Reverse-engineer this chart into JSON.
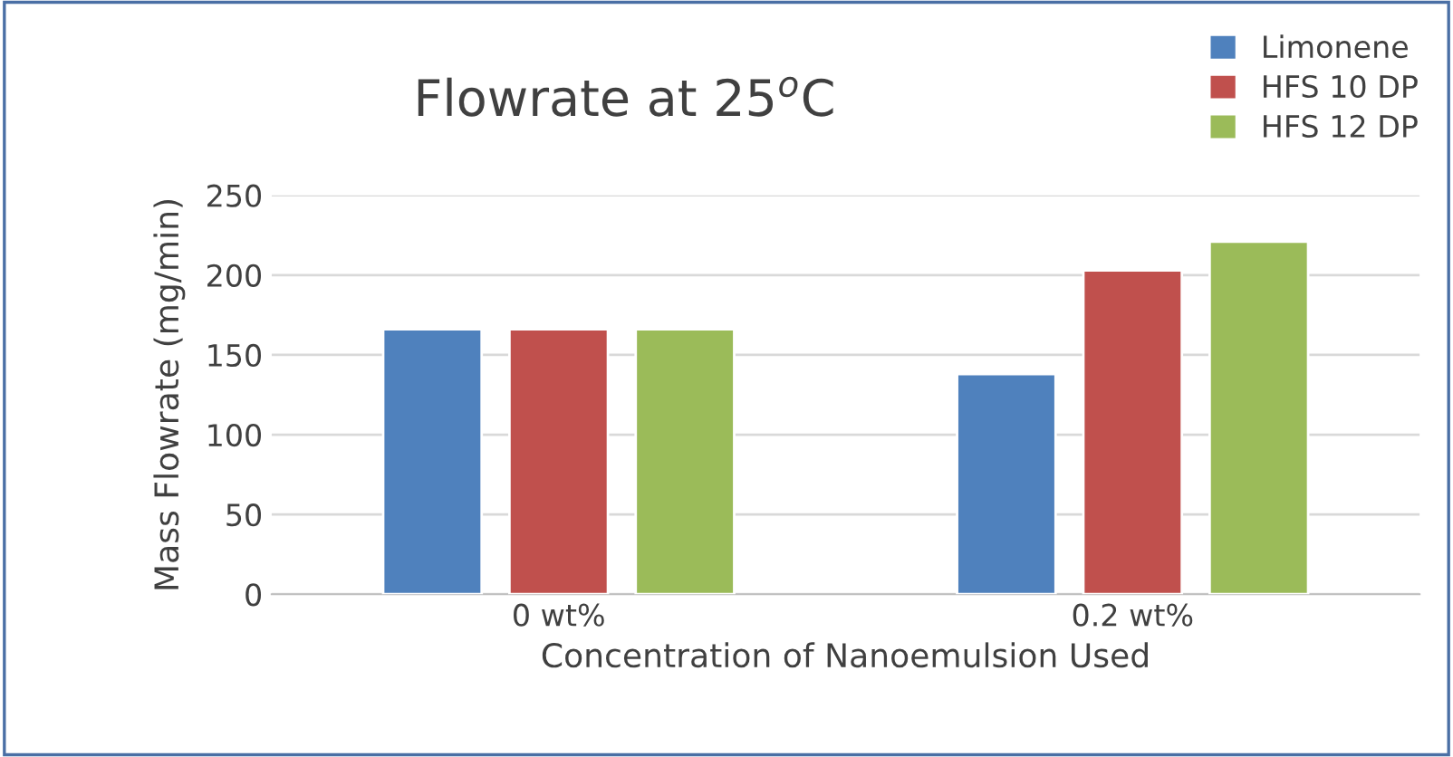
{
  "chart_data": {
    "type": "bar",
    "title": "Flowrate at 25$^{o}$C",
    "xlabel": "Concentration of Nanoemulsion Used",
    "ylabel": "Mass Flowrate (mg/min)",
    "categories": [
      "0 wt%",
      "0.2 wt%"
    ],
    "series": [
      {
        "name": "Limonene",
        "color": "#4f81bd",
        "values": [
          166,
          138
        ]
      },
      {
        "name": "HFS 10 DP",
        "color": "#c0504d",
        "values": [
          166,
          203
        ]
      },
      {
        "name": "HFS 12 DP",
        "color": "#9bbb59",
        "values": [
          166,
          221
        ]
      }
    ],
    "ylim": [
      0,
      250
    ],
    "yticks": [
      0,
      50,
      100,
      150,
      200,
      250
    ],
    "grid": "y",
    "legend": "top right"
  }
}
